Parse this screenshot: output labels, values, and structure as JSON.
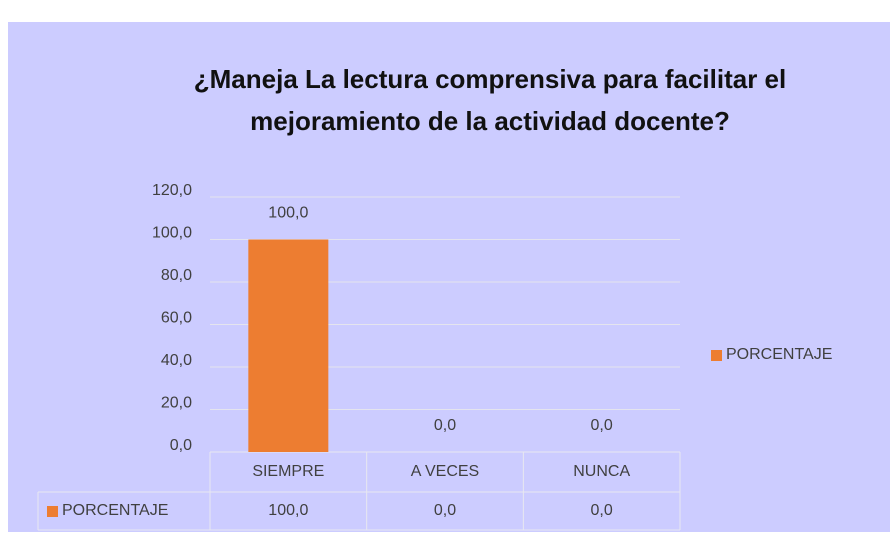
{
  "chart_data": {
    "type": "bar",
    "title": "¿Maneja La lectura comprensiva para facilitar el mejoramiento de la actividad docente?",
    "categories": [
      "SIEMPRE",
      "A VECES",
      "NUNCA"
    ],
    "series": [
      {
        "name": "PORCENTAJE",
        "color": "#ed7d31",
        "values": [
          100,
          0,
          0
        ],
        "value_labels": [
          "100,0",
          "0,0",
          "0,0"
        ]
      }
    ],
    "ylim": [
      0,
      120
    ],
    "yticks": [
      {
        "value": 0,
        "label": "0,0"
      },
      {
        "value": 20,
        "label": "20,0"
      },
      {
        "value": 40,
        "label": "40,0"
      },
      {
        "value": 60,
        "label": "60,0"
      },
      {
        "value": 80,
        "label": "80,0"
      },
      {
        "value": 100,
        "label": "100,0"
      },
      {
        "value": 120,
        "label": "120,0"
      }
    ],
    "grid": true,
    "legend": "right",
    "data_table": true
  }
}
